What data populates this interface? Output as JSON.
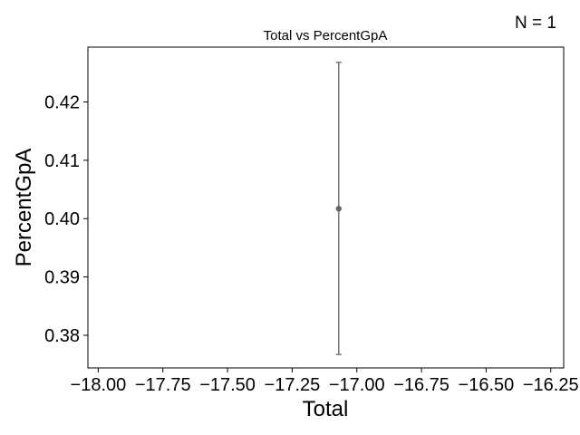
{
  "chart_data": {
    "type": "scatter",
    "title": "Total vs PercentGpA",
    "xlabel": "Total",
    "ylabel": "PercentGpA",
    "annotation": "N = 1",
    "xlim": [
      -18.04,
      -16.2
    ],
    "ylim": [
      0.3744,
      0.4294
    ],
    "xticks": [
      -18.0,
      -17.75,
      -17.5,
      -17.25,
      -17.0,
      -16.75,
      -16.5,
      -16.25
    ],
    "xtick_labels": [
      "−18.00",
      "−17.75",
      "−17.50",
      "−17.25",
      "−17.00",
      "−16.75",
      "−16.50",
      "−16.25"
    ],
    "yticks": [
      0.38,
      0.39,
      0.4,
      0.41,
      0.42
    ],
    "ytick_labels": [
      "0.38",
      "0.39",
      "0.40",
      "0.41",
      "0.42"
    ],
    "grid": false,
    "points": [
      {
        "x": -17.07,
        "y": 0.4017,
        "y_err_low": 0.3767,
        "y_err_high": 0.4268
      }
    ],
    "colors": {
      "point": "#666666",
      "errorbar": "#777777",
      "axes": "#000000"
    }
  }
}
